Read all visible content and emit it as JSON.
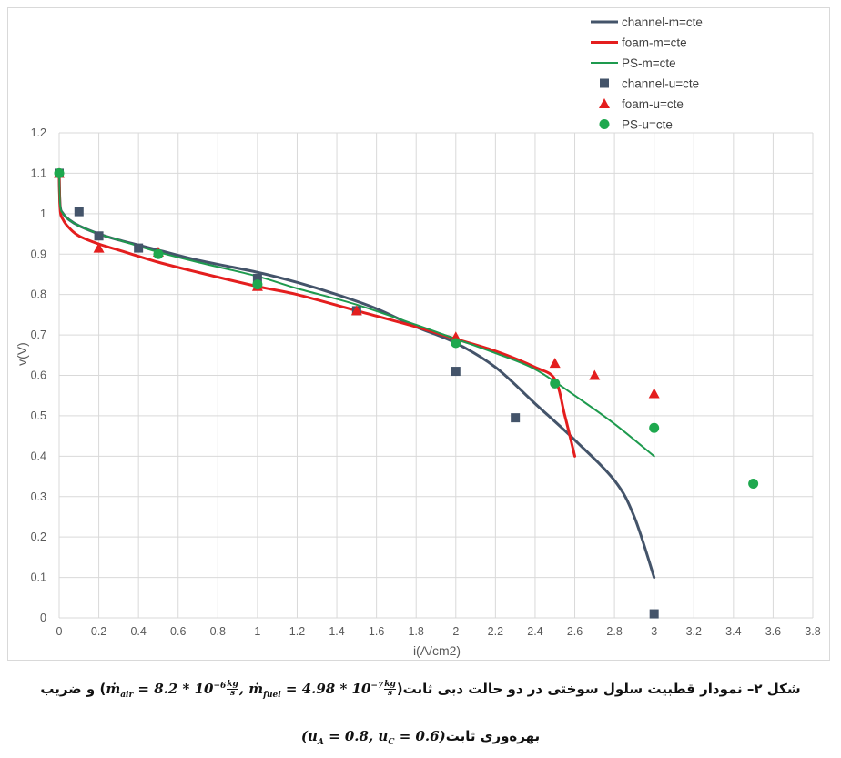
{
  "chart_data": {
    "type": "line",
    "xlabel": "i(A/cm2)",
    "ylabel": "v(V)",
    "xlim": [
      0,
      3.8
    ],
    "ylim": [
      0,
      1.2
    ],
    "xticks": [
      "0",
      "0.2",
      "0.4",
      "0.6",
      "0.8",
      "1",
      "1.2",
      "1.4",
      "1.6",
      "1.8",
      "2",
      "2.2",
      "2.4",
      "2.6",
      "2.8",
      "3",
      "3.2",
      "3.4",
      "3.6",
      "3.8"
    ],
    "yticks": [
      "0",
      "0.1",
      "0.2",
      "0.3",
      "0.4",
      "0.5",
      "0.6",
      "0.7",
      "0.8",
      "0.9",
      "1",
      "1.1",
      "1.2"
    ],
    "grid": true,
    "legend_position": "top-right",
    "series": [
      {
        "name": "channel-m=cte",
        "kind": "line",
        "color": "#44546a",
        "x": [
          0,
          0.005,
          0.02,
          0.05,
          0.1,
          0.2,
          0.3,
          0.5,
          0.7,
          1.0,
          1.2,
          1.4,
          1.6,
          1.8,
          2.0,
          2.2,
          2.4,
          2.6,
          2.8,
          2.9,
          3.0
        ],
        "y": [
          1.1,
          1.02,
          1.0,
          0.985,
          0.97,
          0.95,
          0.935,
          0.91,
          0.885,
          0.855,
          0.83,
          0.8,
          0.765,
          0.72,
          0.68,
          0.62,
          0.53,
          0.44,
          0.34,
          0.25,
          0.1
        ]
      },
      {
        "name": "foam-m=cte",
        "kind": "line",
        "color": "#e41e1e",
        "x": [
          0,
          0.005,
          0.02,
          0.05,
          0.1,
          0.2,
          0.3,
          0.5,
          0.7,
          1.0,
          1.2,
          1.5,
          1.8,
          2.0,
          2.2,
          2.4,
          2.5,
          2.55,
          2.6
        ],
        "y": [
          1.1,
          1.01,
          0.985,
          0.965,
          0.945,
          0.925,
          0.91,
          0.88,
          0.855,
          0.82,
          0.8,
          0.76,
          0.72,
          0.69,
          0.66,
          0.62,
          0.59,
          0.5,
          0.4
        ]
      },
      {
        "name": "PS-m=cte",
        "kind": "line",
        "color": "#1e9a4e",
        "x": [
          0,
          0.005,
          0.02,
          0.05,
          0.1,
          0.2,
          0.3,
          0.5,
          0.7,
          1.0,
          1.2,
          1.5,
          1.8,
          2.0,
          2.2,
          2.4,
          2.6,
          2.8,
          3.0
        ],
        "y": [
          1.1,
          1.02,
          1.0,
          0.985,
          0.97,
          0.95,
          0.935,
          0.905,
          0.88,
          0.845,
          0.815,
          0.775,
          0.725,
          0.69,
          0.655,
          0.615,
          0.55,
          0.48,
          0.4
        ]
      },
      {
        "name": "channel-u=cte",
        "kind": "scatter",
        "marker": "square",
        "color": "#44546a",
        "x": [
          0,
          0.1,
          0.2,
          0.4,
          1.0,
          1.5,
          2.0,
          2.3,
          3.0
        ],
        "y": [
          1.1,
          1.005,
          0.945,
          0.915,
          0.84,
          0.76,
          0.61,
          0.495,
          0.01
        ]
      },
      {
        "name": "foam-u=cte",
        "kind": "scatter",
        "marker": "triangle",
        "color": "#e41e1e",
        "x": [
          0,
          0.2,
          0.5,
          1.0,
          1.5,
          2.0,
          2.5,
          2.7,
          3.0
        ],
        "y": [
          1.1,
          0.915,
          0.905,
          0.82,
          0.76,
          0.695,
          0.63,
          0.6,
          0.555
        ]
      },
      {
        "name": "PS-u=cte",
        "kind": "scatter",
        "marker": "circle",
        "color": "#1ea84e",
        "x": [
          0,
          0.5,
          1.0,
          2.0,
          2.5,
          3.0,
          3.5
        ],
        "y": [
          1.1,
          0.9,
          0.825,
          0.68,
          0.58,
          0.47,
          0.332
        ]
      }
    ]
  },
  "caption": {
    "line1_prefix": "شکل ۲– نمودار قطبیت سلول سوختی در دو حالت دبی ثابت",
    "line1_formula_air": "ṁ",
    "air_sub": "air",
    "air_value": " = 8.2 * 10",
    "air_exp": "−6",
    "frac_num": "kg",
    "frac_den": "s",
    "fuel_sub": "fuel",
    "fuel_value": " = 4.98 * 10",
    "fuel_exp": "−7",
    "line1_suffix": " و ضریب",
    "line2_prefix": "بهره‌وری ثابت",
    "line2_formula": "(u",
    "uA_sub": "A",
    "uA_value": " = 0.8, u",
    "uC_sub": "C",
    "uC_value": " = 0.6)"
  }
}
